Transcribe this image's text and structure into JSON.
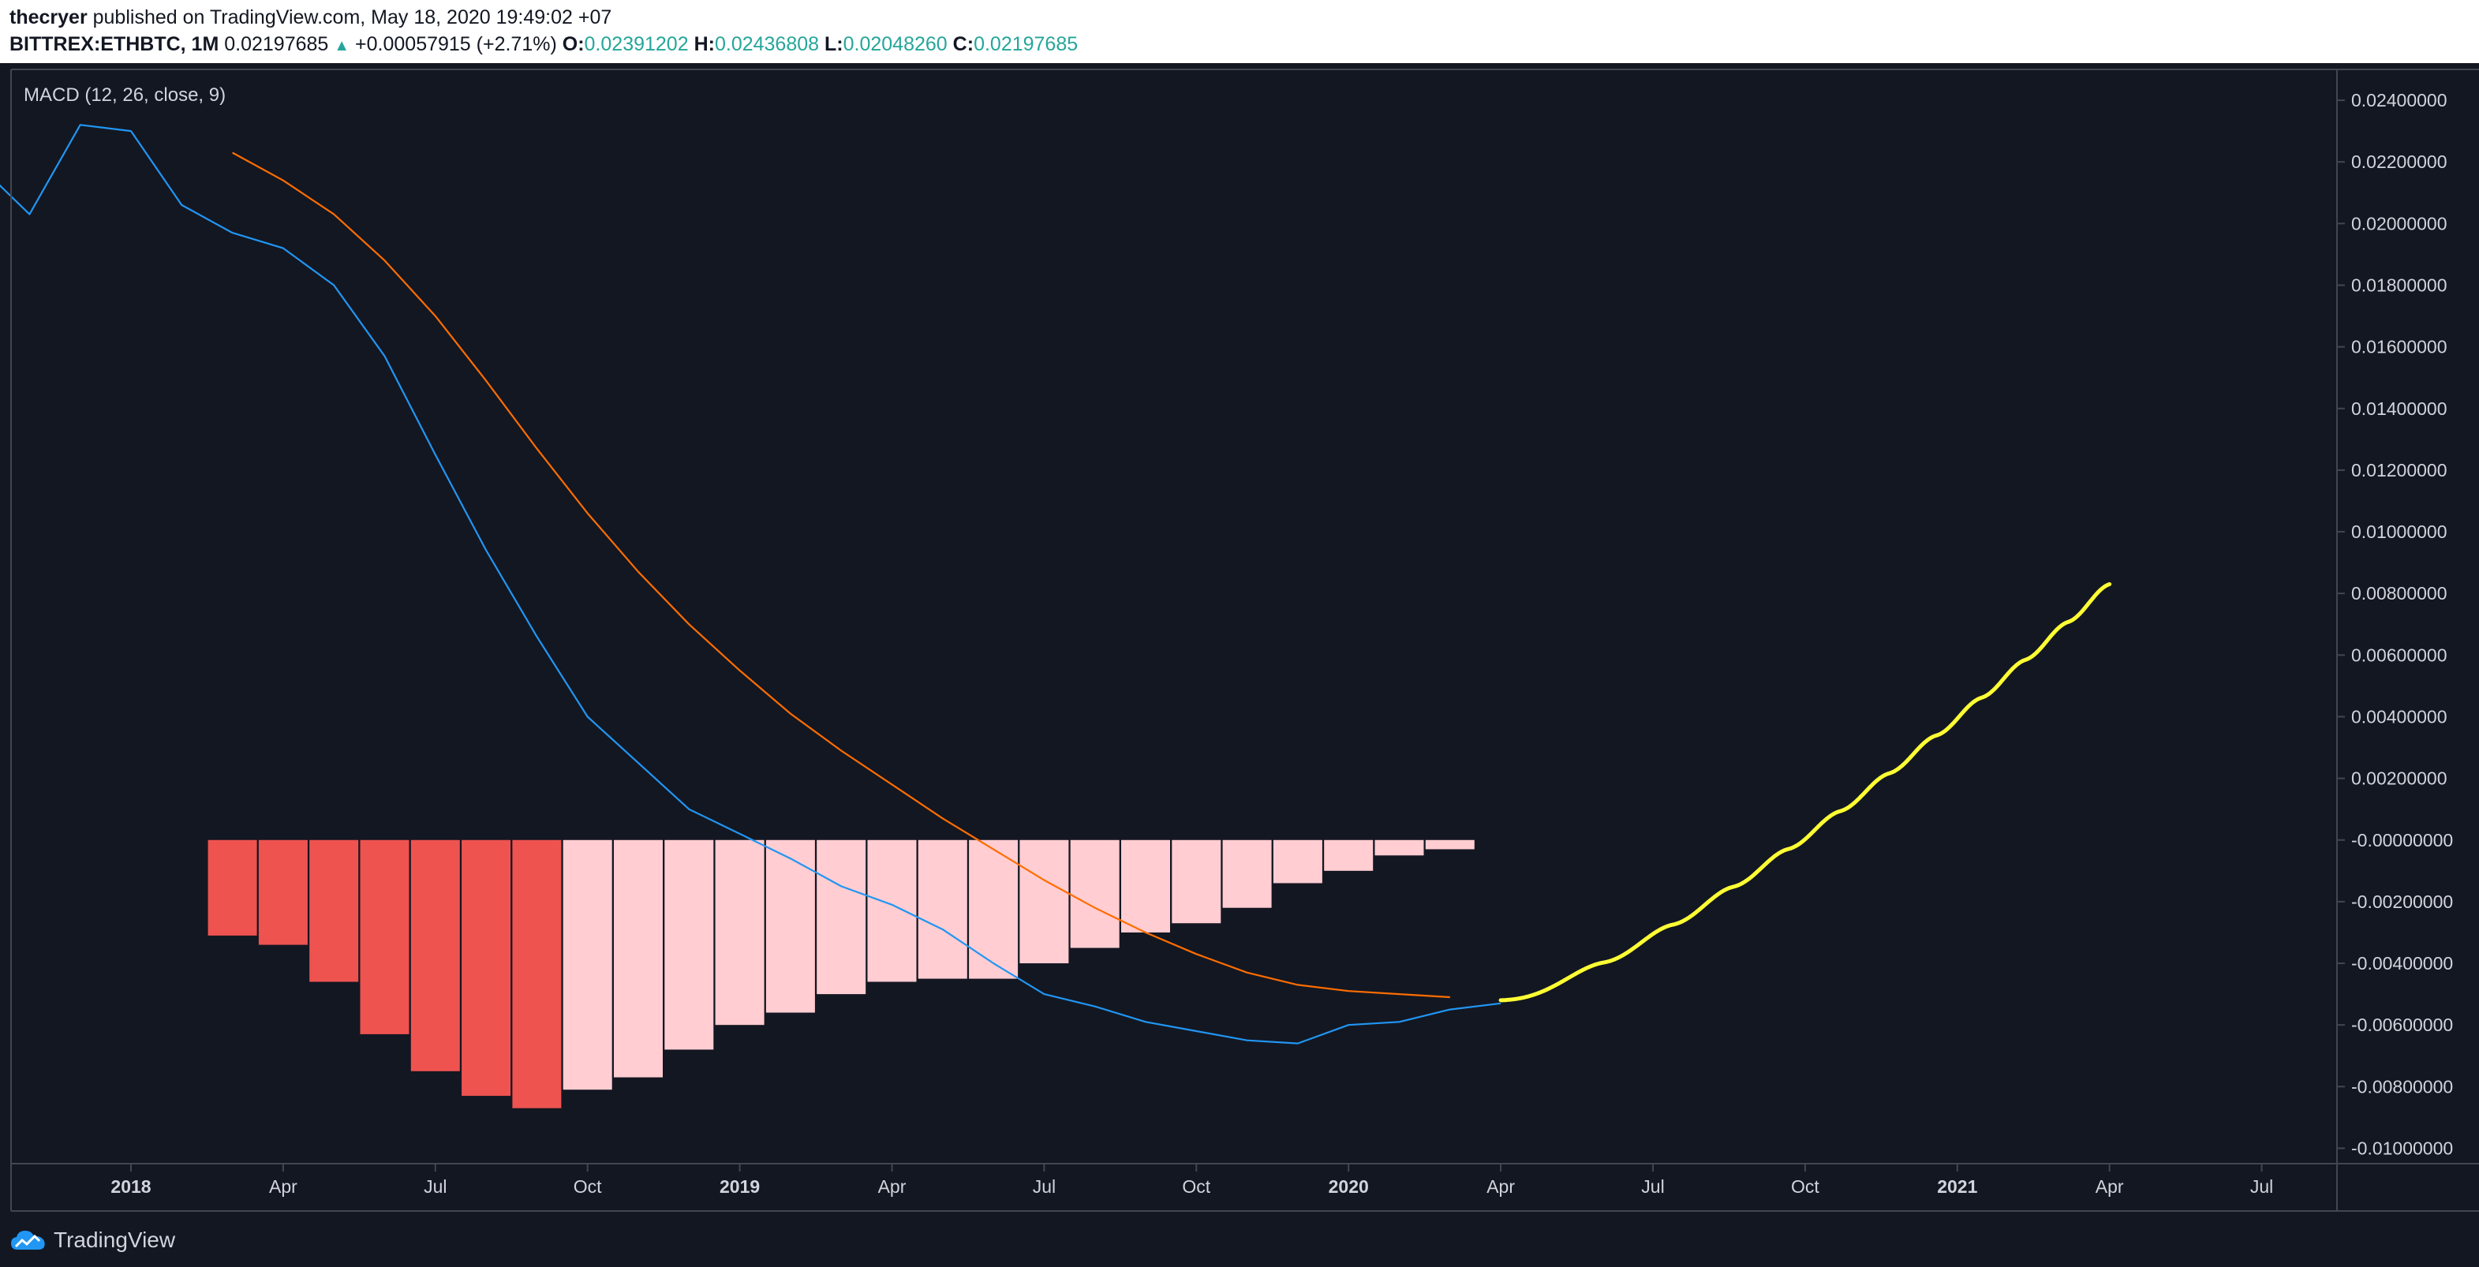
{
  "header": {
    "author": "thecryer",
    "published_text": "published on TradingView.com, May 18, 2020 19:49:02 +07",
    "symbol": "BITTREX:ETHBTC, 1M",
    "last_price": "0.02197685",
    "change": "+0.00057915 (+2.71%)",
    "open_label": "O:",
    "open": "0.02391202",
    "high_label": "H:",
    "high": "0.02436808",
    "low_label": "L:",
    "low": "0.02048260",
    "close_label": "C:",
    "close": "0.02197685"
  },
  "footer": {
    "brand": "TradingView"
  },
  "colors": {
    "background": "#131722",
    "macd_line": "#2196f3",
    "signal_line": "#ff6d00",
    "hist_dark": "#ef5350",
    "hist_light": "#ffcdd2",
    "projection": "#ffff33",
    "axis_text": "#d1d4dc",
    "border": "#434651"
  },
  "chart_data": {
    "type": "line",
    "title": "MACD (12, 26, close, 9)",
    "x_labels": [
      {
        "t": "2018-01",
        "label": "2018",
        "bold": true
      },
      {
        "t": "2018-04",
        "label": "Apr"
      },
      {
        "t": "2018-07",
        "label": "Jul"
      },
      {
        "t": "2018-10",
        "label": "Oct"
      },
      {
        "t": "2019-01",
        "label": "2019",
        "bold": true
      },
      {
        "t": "2019-04",
        "label": "Apr"
      },
      {
        "t": "2019-07",
        "label": "Jul"
      },
      {
        "t": "2019-10",
        "label": "Oct"
      },
      {
        "t": "2020-01",
        "label": "2020",
        "bold": true
      },
      {
        "t": "2020-04",
        "label": "Apr"
      },
      {
        "t": "2020-07",
        "label": "Jul"
      },
      {
        "t": "2020-10",
        "label": "Oct"
      },
      {
        "t": "2021-01",
        "label": "2021",
        "bold": true
      },
      {
        "t": "2021-04",
        "label": "Apr"
      },
      {
        "t": "2021-07",
        "label": "Jul"
      }
    ],
    "y_ticks": [
      "0.02400000",
      "0.02200000",
      "0.02000000",
      "0.01800000",
      "0.01600000",
      "0.01400000",
      "0.01200000",
      "0.01000000",
      "0.00800000",
      "0.00600000",
      "0.00400000",
      "0.00200000",
      "-0.00000000",
      "-0.00200000",
      "-0.00400000",
      "-0.00600000",
      "-0.00800000",
      "-0.01000000"
    ],
    "ylim": [
      -0.0105,
      0.025
    ],
    "grid": false,
    "series": [
      {
        "key": "macd",
        "points": [
          [
            "2017-10",
            0.0219
          ],
          [
            "2017-11",
            0.0203
          ],
          [
            "2017-12",
            0.0232
          ],
          [
            "2018-01",
            0.023
          ],
          [
            "2018-02",
            0.0206
          ],
          [
            "2018-03",
            0.0197
          ],
          [
            "2018-04",
            0.0192
          ],
          [
            "2018-05",
            0.018
          ],
          [
            "2018-06",
            0.0157
          ],
          [
            "2018-07",
            0.0125
          ],
          [
            "2018-08",
            0.0094
          ],
          [
            "2018-09",
            0.0066
          ],
          [
            "2018-10",
            0.004
          ],
          [
            "2018-11",
            0.0025
          ],
          [
            "2018-12",
            0.001
          ],
          [
            "2019-01",
            0.0002
          ],
          [
            "2019-02",
            -0.0006
          ],
          [
            "2019-03",
            -0.0015
          ],
          [
            "2019-04",
            -0.0021
          ],
          [
            "2019-05",
            -0.0029
          ],
          [
            "2019-06",
            -0.004
          ],
          [
            "2019-07",
            -0.005
          ],
          [
            "2019-08",
            -0.0054
          ],
          [
            "2019-09",
            -0.0059
          ],
          [
            "2019-10",
            -0.0062
          ],
          [
            "2019-11",
            -0.0065
          ],
          [
            "2019-12",
            -0.0066
          ],
          [
            "2020-01",
            -0.006
          ],
          [
            "2020-02",
            -0.0059
          ],
          [
            "2020-03",
            -0.0055
          ],
          [
            "2020-04",
            -0.0053
          ]
        ]
      },
      {
        "key": "signal",
        "points": [
          [
            "2018-03",
            0.0223
          ],
          [
            "2018-04",
            0.0214
          ],
          [
            "2018-05",
            0.0203
          ],
          [
            "2018-06",
            0.0188
          ],
          [
            "2018-07",
            0.017
          ],
          [
            "2018-08",
            0.0149
          ],
          [
            "2018-09",
            0.0127
          ],
          [
            "2018-10",
            0.0106
          ],
          [
            "2018-11",
            0.0087
          ],
          [
            "2018-12",
            0.007
          ],
          [
            "2019-01",
            0.0055
          ],
          [
            "2019-02",
            0.0041
          ],
          [
            "2019-03",
            0.0029
          ],
          [
            "2019-04",
            0.0018
          ],
          [
            "2019-05",
            0.0007
          ],
          [
            "2019-06",
            -0.0003
          ],
          [
            "2019-07",
            -0.0013
          ],
          [
            "2019-08",
            -0.0022
          ],
          [
            "2019-09",
            -0.003
          ],
          [
            "2019-10",
            -0.0037
          ],
          [
            "2019-11",
            -0.0043
          ],
          [
            "2019-12",
            -0.0047
          ],
          [
            "2020-01",
            -0.0049
          ],
          [
            "2020-02",
            -0.005
          ],
          [
            "2020-03",
            -0.0051
          ]
        ]
      }
    ],
    "histogram": [
      {
        "t": "2018-03",
        "v": -0.0031,
        "shade": "dark"
      },
      {
        "t": "2018-04",
        "v": -0.0034,
        "shade": "dark"
      },
      {
        "t": "2018-05",
        "v": -0.0046,
        "shade": "dark"
      },
      {
        "t": "2018-06",
        "v": -0.0063,
        "shade": "dark"
      },
      {
        "t": "2018-07",
        "v": -0.0075,
        "shade": "dark"
      },
      {
        "t": "2018-08",
        "v": -0.0083,
        "shade": "dark"
      },
      {
        "t": "2018-09",
        "v": -0.0087,
        "shade": "dark"
      },
      {
        "t": "2018-10",
        "v": -0.0081,
        "shade": "light"
      },
      {
        "t": "2018-11",
        "v": -0.0077,
        "shade": "light"
      },
      {
        "t": "2018-12",
        "v": -0.0068,
        "shade": "light"
      },
      {
        "t": "2019-01",
        "v": -0.006,
        "shade": "light"
      },
      {
        "t": "2019-02",
        "v": -0.0056,
        "shade": "light"
      },
      {
        "t": "2019-03",
        "v": -0.005,
        "shade": "light"
      },
      {
        "t": "2019-04",
        "v": -0.0046,
        "shade": "light"
      },
      {
        "t": "2019-05",
        "v": -0.0045,
        "shade": "light"
      },
      {
        "t": "2019-06",
        "v": -0.0045,
        "shade": "light"
      },
      {
        "t": "2019-07",
        "v": -0.004,
        "shade": "light"
      },
      {
        "t": "2019-08",
        "v": -0.0035,
        "shade": "light"
      },
      {
        "t": "2019-09",
        "v": -0.003,
        "shade": "light"
      },
      {
        "t": "2019-10",
        "v": -0.0027,
        "shade": "light"
      },
      {
        "t": "2019-11",
        "v": -0.0022,
        "shade": "light"
      },
      {
        "t": "2019-12",
        "v": -0.0014,
        "shade": "light"
      },
      {
        "t": "2020-01",
        "v": -0.001,
        "shade": "light"
      },
      {
        "t": "2020-02",
        "v": -0.0005,
        "shade": "light"
      },
      {
        "t": "2020-03",
        "v": -0.0003,
        "shade": "light"
      }
    ],
    "projection": {
      "start": [
        "2020-04",
        -0.0052
      ],
      "end": [
        "2021-04",
        0.0083
      ],
      "steps": 11
    }
  }
}
